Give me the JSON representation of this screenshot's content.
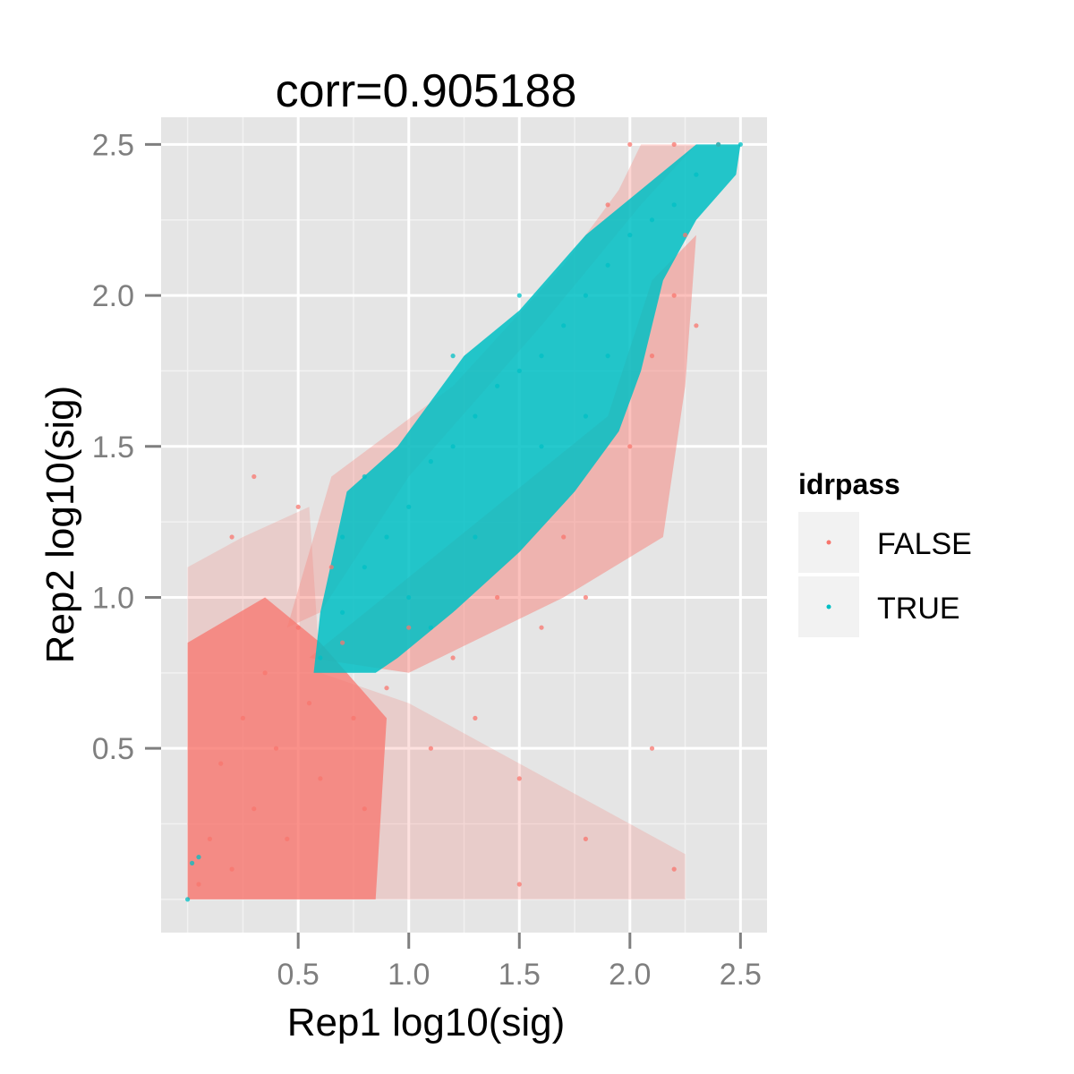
{
  "chart_data": {
    "type": "scatter",
    "title": "corr=0.905188",
    "xlabel": "Rep1 log10(sig)",
    "ylabel": "Rep2 log10(sig)",
    "xlim": [
      -0.12,
      2.62
    ],
    "ylim": [
      -0.11,
      2.59
    ],
    "x_ticks": [
      "0.5",
      "1.0",
      "1.5",
      "2.0",
      "2.5"
    ],
    "y_ticks": [
      "0.5",
      "1.0",
      "1.5",
      "2.0",
      "2.5"
    ],
    "x_tick_values": [
      0.5,
      1.0,
      1.5,
      2.0,
      2.5
    ],
    "y_tick_values": [
      0.5,
      1.0,
      1.5,
      2.0,
      2.5
    ],
    "grid": true,
    "background": "#e5e5e5",
    "legend": {
      "title": "idrpass",
      "position": "right",
      "entries": [
        {
          "label": "FALSE",
          "color": "#F8766D"
        },
        {
          "label": "TRUE",
          "color": "#00BFC4"
        }
      ]
    },
    "series": [
      {
        "name": "FALSE",
        "color": "#F8766D",
        "points": [
          [
            0.05,
            0.05
          ],
          [
            0.1,
            0.2
          ],
          [
            0.15,
            0.45
          ],
          [
            0.2,
            0.1
          ],
          [
            0.25,
            0.6
          ],
          [
            0.3,
            0.3
          ],
          [
            0.35,
            0.75
          ],
          [
            0.4,
            0.5
          ],
          [
            0.45,
            0.2
          ],
          [
            0.5,
            0.9
          ],
          [
            0.55,
            0.65
          ],
          [
            0.6,
            0.4
          ],
          [
            0.65,
            1.1
          ],
          [
            0.7,
            0.85
          ],
          [
            0.75,
            0.6
          ],
          [
            0.8,
            0.3
          ],
          [
            0.9,
            0.7
          ],
          [
            1.0,
            0.9
          ],
          [
            1.1,
            0.5
          ],
          [
            1.2,
            0.8
          ],
          [
            1.3,
            0.6
          ],
          [
            1.4,
            1.0
          ],
          [
            1.5,
            0.4
          ],
          [
            1.6,
            0.9
          ],
          [
            1.7,
            1.2
          ],
          [
            1.8,
            1.0
          ],
          [
            1.9,
            2.3
          ],
          [
            2.0,
            1.5
          ],
          [
            2.1,
            1.8
          ],
          [
            2.2,
            2.0
          ],
          [
            2.25,
            2.2
          ],
          [
            2.3,
            1.9
          ],
          [
            2.2,
            0.1
          ],
          [
            2.1,
            0.5
          ],
          [
            1.8,
            0.2
          ],
          [
            1.5,
            0.05
          ],
          [
            0.3,
            1.4
          ],
          [
            0.2,
            1.2
          ],
          [
            0.5,
            1.3
          ],
          [
            2.0,
            2.5
          ],
          [
            2.2,
            2.5
          ],
          [
            2.4,
            2.5
          ]
        ]
      },
      {
        "name": "TRUE",
        "color": "#00BFC4",
        "points": [
          [
            0.6,
            0.8
          ],
          [
            0.7,
            0.95
          ],
          [
            0.8,
            1.1
          ],
          [
            0.9,
            1.2
          ],
          [
            1.0,
            1.3
          ],
          [
            1.1,
            1.45
          ],
          [
            1.2,
            1.5
          ],
          [
            1.3,
            1.6
          ],
          [
            1.4,
            1.7
          ],
          [
            1.5,
            1.75
          ],
          [
            1.6,
            1.8
          ],
          [
            1.7,
            1.9
          ],
          [
            1.8,
            2.0
          ],
          [
            1.9,
            2.1
          ],
          [
            2.0,
            2.2
          ],
          [
            2.1,
            2.25
          ],
          [
            2.2,
            2.3
          ],
          [
            2.3,
            2.4
          ],
          [
            2.4,
            2.5
          ],
          [
            2.5,
            2.5
          ],
          [
            0.8,
            1.4
          ],
          [
            1.0,
            1.0
          ],
          [
            1.3,
            1.2
          ],
          [
            1.6,
            1.5
          ],
          [
            1.9,
            1.8
          ],
          [
            1.2,
            1.8
          ],
          [
            1.5,
            2.0
          ],
          [
            0.7,
            1.2
          ],
          [
            1.1,
            0.9
          ],
          [
            1.8,
            1.6
          ],
          [
            0.0,
            0.0
          ],
          [
            0.02,
            0.12
          ],
          [
            0.05,
            0.14
          ]
        ]
      }
    ]
  }
}
